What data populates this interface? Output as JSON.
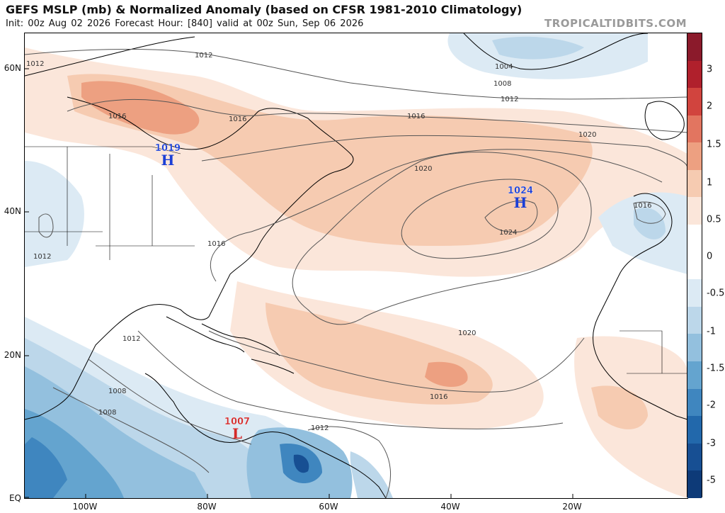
{
  "header": {
    "title": "GEFS MSLP (mb) & Normalized Anomaly (based on CFSR 1981-2010 Climatology)",
    "subtitle": "Init: 00z Aug 02 2026   Forecast Hour: [840]   valid at 00z Sun, Sep 06 2026",
    "brand": "TROPICALTIDBITS.COM"
  },
  "axes": {
    "lat_labels": [
      "60N",
      "40N",
      "20N",
      "EQ"
    ],
    "lon_labels": [
      "100W",
      "80W",
      "60W",
      "40W",
      "20W"
    ]
  },
  "colorbar": {
    "labels": [
      "3",
      "2",
      "1.5",
      "1",
      "0.5",
      "0",
      "-0.5",
      "-1",
      "-1.5",
      "-2",
      "-3",
      "-5"
    ],
    "colors": [
      "#8b1a2b",
      "#b0202c",
      "#d1443e",
      "#e27560",
      "#eda081",
      "#f6cbb1",
      "#fbe6da",
      "#ffffff",
      "#ffffff",
      "#dceaf4",
      "#bcd7ea",
      "#93c0de",
      "#64a4cf",
      "#3f86bf",
      "#2268ab",
      "#174f93",
      "#0d3a78"
    ]
  },
  "pressure_centers": [
    {
      "type": "H",
      "value": "1019",
      "color": "#1b3fd6"
    },
    {
      "type": "H",
      "value": "1024",
      "color": "#1b3fd6"
    },
    {
      "type": "L",
      "value": "1007",
      "color": "#d42a2a"
    }
  ],
  "isobar_labels": [
    "1012",
    "1012",
    "1004",
    "1008",
    "1012",
    "1016",
    "1016",
    "1016",
    "1020",
    "1020",
    "1024",
    "1016",
    "1012",
    "1016",
    "1012",
    "1008",
    "1008",
    "1012",
    "1020",
    "1016"
  ]
}
